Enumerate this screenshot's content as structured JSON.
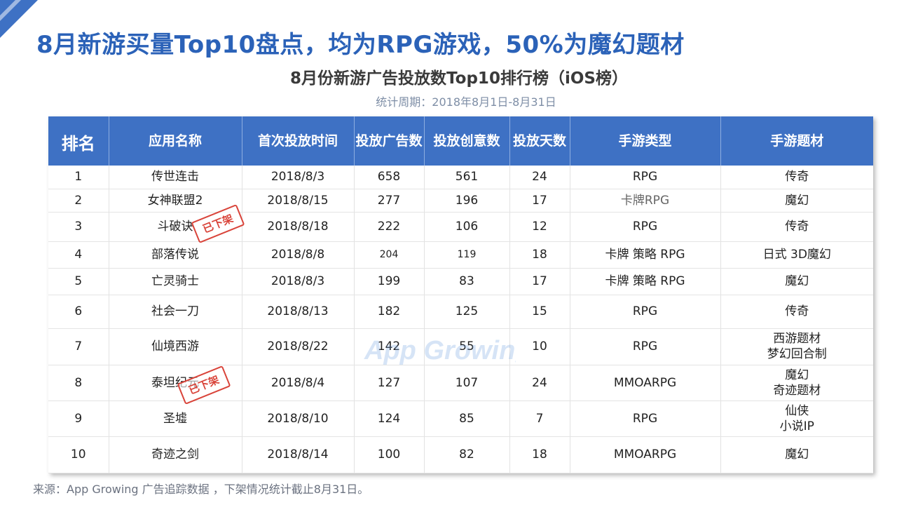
{
  "title": "8月新游买量Top10盘点，均为RPG游戏，50%为魔幻题材",
  "subtitle": "8月份新游广告投放数Top10排行榜（iOS榜）",
  "period": "统计周期：2018年8月1日-8月31日",
  "table": {
    "headers": [
      "排名",
      "应用名称",
      "首次投放时间",
      "投放广告数",
      "投放创意数",
      "投放天数",
      "手游类型",
      "手游题材"
    ],
    "rows": [
      {
        "rank": "1",
        "name": "传世连击",
        "date": "2018/8/3",
        "ads": "658",
        "creatives": "561",
        "days": "24",
        "type": "RPG",
        "theme_lines": [
          "传奇"
        ]
      },
      {
        "rank": "2",
        "name": "女神联盟2",
        "date": "2018/8/15",
        "ads": "277",
        "creatives": "196",
        "days": "17",
        "type": "卡牌RPG",
        "theme_lines": [
          "魔幻"
        ]
      },
      {
        "rank": "3",
        "name": "斗破诀",
        "date": "2018/8/18",
        "ads": "222",
        "creatives": "106",
        "days": "12",
        "type": "RPG",
        "theme_lines": [
          "传奇"
        ]
      },
      {
        "rank": "4",
        "name": "部落传说",
        "date": "2018/8/8",
        "ads": "204",
        "creatives": "119",
        "days": "18",
        "type": "卡牌 策略 RPG",
        "theme_lines": [
          "日式  3D魔幻"
        ]
      },
      {
        "rank": "5",
        "name": "亡灵骑士",
        "date": "2018/8/3",
        "ads": "199",
        "creatives": "83",
        "days": "17",
        "type": "卡牌 策略 RPG",
        "theme_lines": [
          "魔幻"
        ]
      },
      {
        "rank": "6",
        "name": "社会一刀",
        "date": "2018/8/13",
        "ads": "182",
        "creatives": "125",
        "days": "15",
        "type": "RPG",
        "theme_lines": [
          "传奇"
        ]
      },
      {
        "rank": "7",
        "name": "仙境西游",
        "date": "2018/8/22",
        "ads": "142",
        "creatives": "55",
        "days": "10",
        "type": "RPG",
        "theme_lines": [
          "西游题材",
          "梦幻回合制"
        ]
      },
      {
        "rank": "8",
        "name": "泰坦纪元",
        "date": "2018/8/4",
        "ads": "127",
        "creatives": "107",
        "days": "24",
        "type": "MMOARPG",
        "theme_lines": [
          "魔幻",
          "奇迹题材"
        ]
      },
      {
        "rank": "9",
        "name": "圣墟",
        "date": "2018/8/10",
        "ads": "124",
        "creatives": "85",
        "days": "7",
        "type": "RPG",
        "theme_lines": [
          "仙侠",
          "小说IP"
        ]
      },
      {
        "rank": "10",
        "name": "奇迹之剑",
        "date": "2018/8/14",
        "ads": "100",
        "creatives": "82",
        "days": "18",
        "type": "MMOARPG",
        "theme_lines": [
          "魔幻"
        ]
      }
    ]
  },
  "stamps": [
    "已下架",
    "已下架"
  ],
  "watermark": "App Growing",
  "source": "来源：App Growing 广告追踪数据 ，下架情况统计截止8月31日。",
  "colors": {
    "title": "#2b62b8",
    "header_bg": "#3e71c4",
    "stamp": "#d9443a"
  }
}
